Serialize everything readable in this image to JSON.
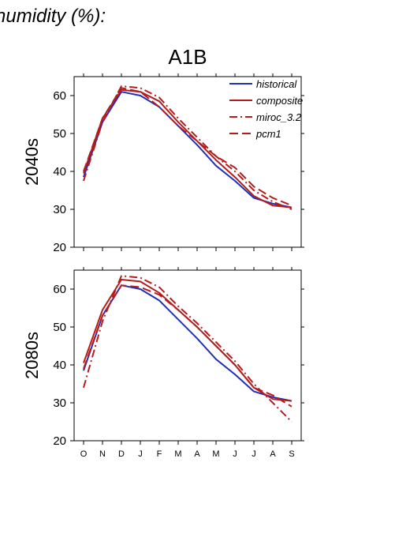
{
  "page": {
    "title": "humidity (%):"
  },
  "chart_data": [
    {
      "type": "line",
      "title": "A1B",
      "row_label": "2040s",
      "categories": [
        "O",
        "N",
        "D",
        "J",
        "F",
        "M",
        "A",
        "M",
        "J",
        "J",
        "A",
        "S"
      ],
      "ylim": [
        20,
        65
      ],
      "yticks": [
        20,
        30,
        40,
        50,
        60
      ],
      "legend_position": "top-right",
      "series": [
        {
          "name": "historical",
          "color": "#1f2fb8",
          "dash": "solid",
          "values": [
            38.5,
            53,
            61,
            60,
            57,
            52,
            47,
            41.5,
            37.5,
            33,
            31.5,
            30.5
          ]
        },
        {
          "name": "composite",
          "color": "#b51c1c",
          "dash": "solid",
          "values": [
            39.5,
            54,
            61.5,
            61,
            58.5,
            53,
            48,
            43,
            38.5,
            33.5,
            31,
            30.5
          ]
        },
        {
          "name": "miroc_3.2",
          "color": "#b51c1c",
          "dash": "dashdot",
          "values": [
            37.5,
            53,
            62.5,
            62,
            59.5,
            54,
            49,
            44,
            40,
            35,
            32,
            30
          ]
        },
        {
          "name": "pcm1",
          "color": "#b51c1c",
          "dash": "dash",
          "values": [
            40,
            54,
            62,
            61,
            57,
            52,
            48,
            44,
            41,
            36,
            33,
            31
          ]
        }
      ]
    },
    {
      "type": "line",
      "title": "",
      "row_label": "2080s",
      "categories": [
        "O",
        "N",
        "D",
        "J",
        "F",
        "M",
        "A",
        "M",
        "J",
        "J",
        "A",
        "S"
      ],
      "ylim": [
        20,
        65
      ],
      "yticks": [
        20,
        30,
        40,
        50,
        60
      ],
      "series": [
        {
          "name": "historical",
          "color": "#1f2fb8",
          "dash": "solid",
          "values": [
            38.5,
            53,
            61,
            60,
            57,
            52,
            47,
            41.5,
            37.5,
            33,
            31.5,
            30.5
          ]
        },
        {
          "name": "composite",
          "color": "#b51c1c",
          "dash": "solid",
          "values": [
            40.5,
            54.5,
            62.5,
            62,
            59,
            54.5,
            50,
            45,
            40,
            34,
            31,
            30.5
          ]
        },
        {
          "name": "miroc_3.2",
          "color": "#b51c1c",
          "dash": "dashdot",
          "values": [
            34,
            51.5,
            63.5,
            63,
            60.5,
            55.5,
            51,
            46,
            41,
            35,
            30,
            25
          ]
        },
        {
          "name": "pcm1",
          "color": "#b51c1c",
          "dash": "dash",
          "values": [
            39,
            53,
            61,
            60.5,
            58.5,
            54.5,
            50,
            45,
            40,
            34,
            32,
            29
          ]
        }
      ]
    }
  ]
}
